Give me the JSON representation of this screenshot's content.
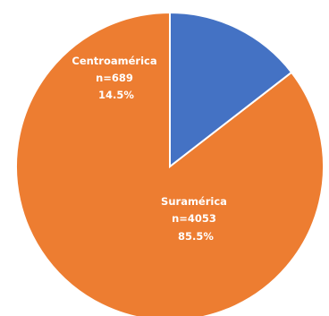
{
  "chart_data": {
    "type": "pie",
    "start_angle_deg": 0,
    "direction": "counterclockwise",
    "slices": [
      {
        "name": "Suramérica",
        "n_label": "n=4053",
        "value": 4053,
        "percent_label": "85.5%",
        "color": "#ED7D31"
      },
      {
        "name": "Centroamérica",
        "n_label": "n=689",
        "value": 689,
        "percent_label": "14.5%",
        "color": "#4472C4"
      }
    ]
  }
}
